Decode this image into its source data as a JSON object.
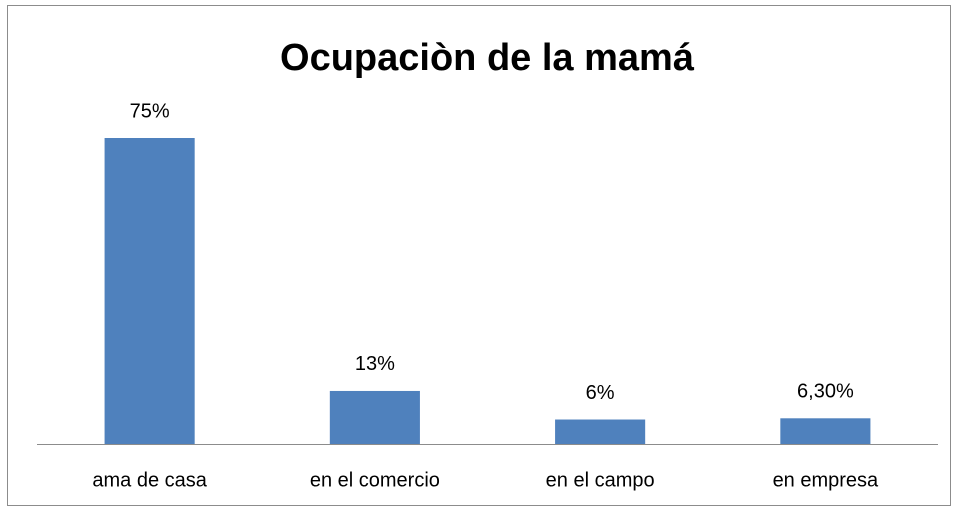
{
  "chart_data": {
    "type": "bar",
    "title": "Ocupaciòn de la mamá",
    "categories": [
      "ama de casa",
      "en el comercio",
      "en el campo",
      "en empresa"
    ],
    "values": [
      75,
      13,
      6,
      6.3
    ],
    "value_labels": [
      "75%",
      "13%",
      "6%",
      "6,30%"
    ],
    "color": "#4f81bd"
  }
}
